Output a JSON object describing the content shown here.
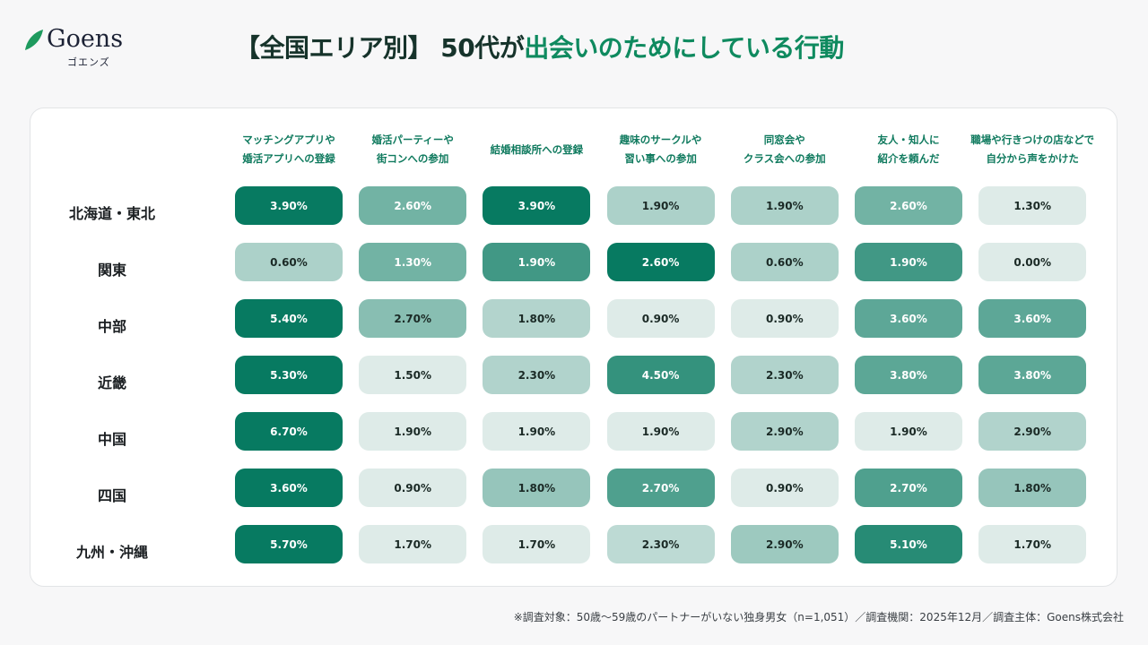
{
  "brand": {
    "name": "Goens",
    "kana": "ゴエンズ",
    "leaf_color": "#1e9a5e"
  },
  "header": {
    "title_prefix": "【全国エリア別】 50代が",
    "title_accent": "出会いのためにしている行動"
  },
  "colors": {
    "low": "#e9f1ef",
    "high": "#077a61",
    "accent": "#0f8a5f"
  },
  "chart_data": {
    "type": "heatmap",
    "title": "【全国エリア別】 50代が出会いのためにしている行動",
    "columns": [
      "マッチングアプリや\n婚活アプリへの登録",
      "婚活パーティーや\n街コンへの参加",
      "結婚相談所への登録",
      "趣味のサークルや\n習い事への参加",
      "同窓会や\nクラス会への参加",
      "友人・知人に\n紹介を頼んだ",
      "職場や行きつけの店などで\n自分から声をかけた"
    ],
    "rows": [
      {
        "label": "北海道・東北",
        "values": [
          3.9,
          2.6,
          3.9,
          1.9,
          1.9,
          2.6,
          1.3
        ]
      },
      {
        "label": "関東",
        "values": [
          0.6,
          1.3,
          1.9,
          2.6,
          0.6,
          1.9,
          0.0
        ]
      },
      {
        "label": "中部",
        "values": [
          5.4,
          2.7,
          1.8,
          0.9,
          0.9,
          3.6,
          3.6
        ]
      },
      {
        "label": "近畿",
        "values": [
          5.3,
          1.5,
          2.3,
          4.5,
          2.3,
          3.8,
          3.8
        ]
      },
      {
        "label": "中国",
        "values": [
          6.7,
          1.9,
          1.9,
          1.9,
          2.9,
          1.9,
          2.9
        ]
      },
      {
        "label": "四国",
        "values": [
          3.6,
          0.9,
          1.8,
          2.7,
          0.9,
          2.7,
          1.8
        ]
      },
      {
        "label": "九州・沖縄",
        "values": [
          5.7,
          1.7,
          1.7,
          2.3,
          2.9,
          5.1,
          1.7
        ]
      }
    ],
    "unit": "%",
    "color_scale": "per-row min-max"
  },
  "footnote": "※調査対象：50歳〜59歳のパートナーがいない独身男女（n=1,051）／調査機関：2025年12月／調査主体：Goens株式会社"
}
